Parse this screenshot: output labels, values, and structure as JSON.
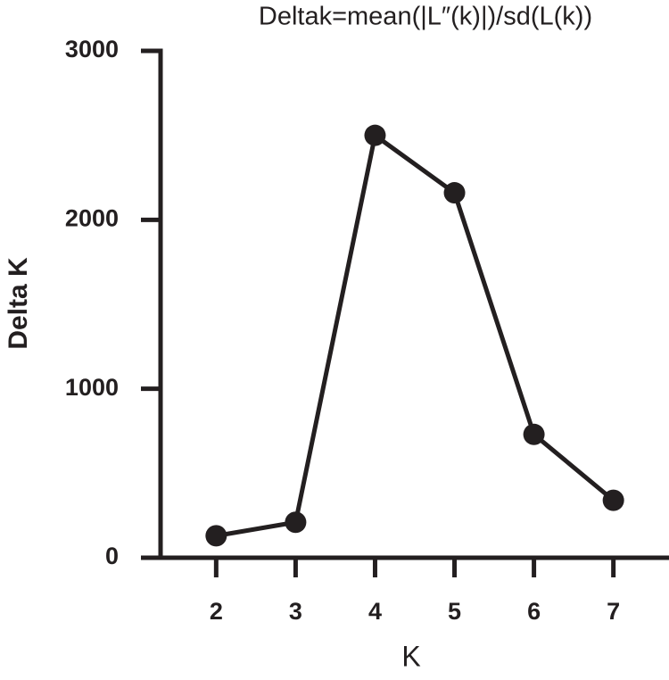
{
  "chart_data": {
    "type": "line",
    "title": "Deltak=mean(|L″(k)|)/sd(L(k))",
    "x_label": "K",
    "y_label": "Delta K",
    "x": [
      2,
      3,
      4,
      5,
      6,
      7
    ],
    "series": [
      {
        "color": "#231f20",
        "values": [
          130,
          210,
          2500,
          2160,
          730,
          340
        ]
      }
    ],
    "xlim": [
      1.3,
      7.7
    ],
    "xticks": [
      2,
      3,
      4,
      5,
      6,
      7
    ],
    "ylim": [
      0,
      3000
    ],
    "yticks": [
      0,
      1000,
      2000,
      3000
    ],
    "grid": false
  }
}
